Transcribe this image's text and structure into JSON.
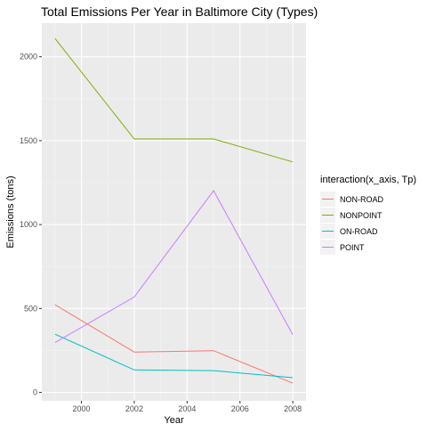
{
  "chart_data": {
    "type": "line",
    "title": "Total Emissions Per Year in Baltimore City (Types)",
    "xlabel": "Year",
    "ylabel": "Emissions (tons)",
    "xlim": [
      1998.5,
      2008.5
    ],
    "ylim": [
      -50,
      2200
    ],
    "x_ticks": [
      2000,
      2002,
      2004,
      2006,
      2008
    ],
    "x_tick_labels": [
      "2000",
      "2002",
      "2004",
      "2006",
      "2008"
    ],
    "y_ticks": [
      0,
      500,
      1000,
      1500,
      2000
    ],
    "y_tick_labels": [
      "0",
      "500",
      "1000",
      "1500",
      "2000"
    ],
    "grid": true,
    "legend": {
      "title": "interaction(x_axis, Tp)",
      "position": "right"
    },
    "series": [
      {
        "name": "NON-ROAD",
        "color": "#F8766D",
        "x": [
          1999,
          2002,
          2005,
          2008
        ],
        "y": [
          522,
          241,
          249,
          55
        ]
      },
      {
        "name": "NONPOINT",
        "color": "#7CAE00",
        "x": [
          1999,
          2002,
          2005,
          2008
        ],
        "y": [
          2108,
          1510,
          1510,
          1373
        ]
      },
      {
        "name": "ON-ROAD",
        "color": "#00BFC4",
        "x": [
          1999,
          2002,
          2005,
          2008
        ],
        "y": [
          347,
          134,
          130,
          88
        ]
      },
      {
        "name": "POINT",
        "color": "#C77CFF",
        "x": [
          1999,
          2002,
          2005,
          2008
        ],
        "y": [
          297,
          569,
          1202,
          344
        ]
      }
    ]
  }
}
